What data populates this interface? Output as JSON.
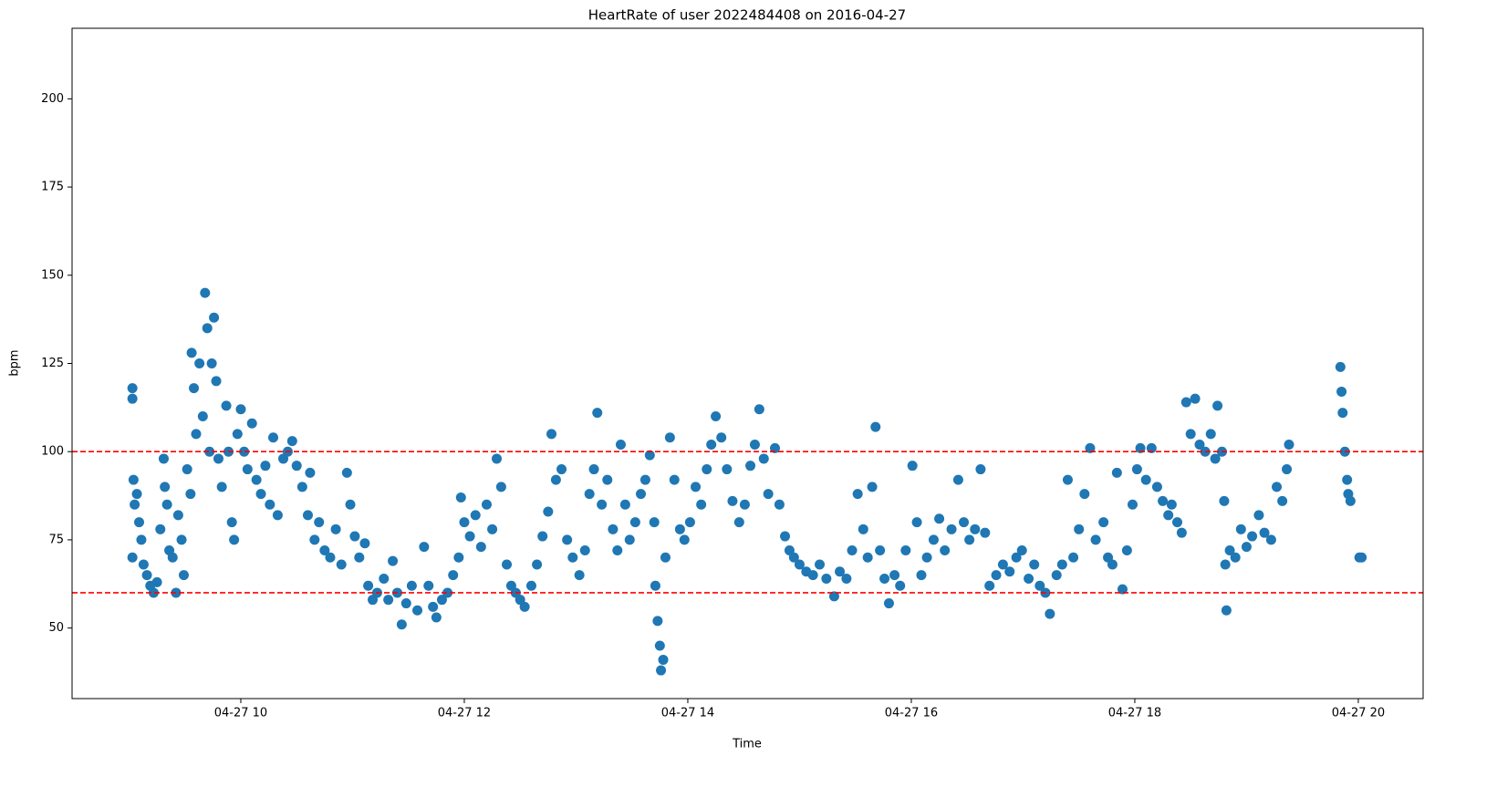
{
  "chart_data": {
    "type": "scatter",
    "title": "HeartRate of user 2022484408 on 2016-04-27",
    "x_label": "Time",
    "y_label": "bpm",
    "color": "#1f77b4",
    "grid": false,
    "xlim": [
      8.49,
      20.58
    ],
    "ylim": [
      30,
      220
    ],
    "xticks": [
      {
        "value": 10,
        "label": "04-27 10"
      },
      {
        "value": 12,
        "label": "04-27 12"
      },
      {
        "value": 14,
        "label": "04-27 14"
      },
      {
        "value": 16,
        "label": "04-27 16"
      },
      {
        "value": 18,
        "label": "04-27 18"
      },
      {
        "value": 20,
        "label": "04-27 20"
      }
    ],
    "yticks": [
      50,
      75,
      100,
      125,
      150,
      175,
      200
    ],
    "hlines": [
      {
        "value": 100,
        "color": "#ff0000",
        "style": "dashed"
      },
      {
        "value": 60,
        "color": "#ff0000",
        "style": "dashed"
      }
    ],
    "x": [
      9.03,
      9.03,
      9.04,
      9.05,
      9.03,
      9.07,
      9.09,
      9.11,
      9.13,
      9.16,
      9.19,
      9.22,
      9.25,
      9.28,
      9.31,
      9.32,
      9.34,
      9.36,
      9.39,
      9.42,
      9.44,
      9.47,
      9.49,
      9.52,
      9.55,
      9.56,
      9.58,
      9.6,
      9.63,
      9.66,
      9.68,
      9.7,
      9.72,
      9.74,
      9.76,
      9.78,
      9.8,
      9.83,
      9.87,
      9.89,
      9.92,
      9.94,
      9.97,
      10.0,
      10.03,
      10.06,
      10.1,
      10.14,
      10.18,
      10.22,
      10.26,
      10.29,
      10.33,
      10.38,
      10.42,
      10.46,
      10.5,
      10.55,
      10.6,
      10.62,
      10.66,
      10.7,
      10.75,
      10.8,
      10.85,
      10.9,
      10.95,
      10.98,
      11.02,
      11.06,
      11.11,
      11.14,
      11.18,
      11.22,
      11.28,
      11.32,
      11.36,
      11.4,
      11.44,
      11.48,
      11.53,
      11.58,
      11.64,
      11.68,
      11.72,
      11.75,
      11.8,
      11.85,
      11.9,
      11.95,
      11.97,
      12.0,
      12.05,
      12.1,
      12.15,
      12.2,
      12.25,
      12.29,
      12.33,
      12.38,
      12.42,
      12.46,
      12.5,
      12.54,
      12.6,
      12.65,
      12.7,
      12.75,
      12.78,
      12.82,
      12.87,
      12.92,
      12.97,
      13.03,
      13.08,
      13.12,
      13.16,
      13.19,
      13.23,
      13.28,
      13.33,
      13.37,
      13.4,
      13.44,
      13.48,
      13.53,
      13.58,
      13.62,
      13.66,
      13.7,
      13.71,
      13.73,
      13.75,
      13.76,
      13.78,
      13.8,
      13.84,
      13.88,
      13.93,
      13.97,
      14.02,
      14.07,
      14.12,
      14.17,
      14.21,
      14.25,
      14.3,
      14.35,
      14.4,
      14.46,
      14.51,
      14.56,
      14.6,
      14.64,
      14.68,
      14.72,
      14.78,
      14.82,
      14.87,
      14.91,
      14.95,
      15.0,
      15.06,
      15.12,
      15.18,
      15.24,
      15.31,
      15.36,
      15.42,
      15.47,
      15.52,
      15.57,
      15.61,
      15.65,
      15.68,
      15.72,
      15.76,
      15.8,
      15.85,
      15.9,
      15.95,
      16.01,
      16.05,
      16.09,
      16.14,
      16.2,
      16.25,
      16.3,
      16.36,
      16.42,
      16.47,
      16.52,
      16.57,
      16.62,
      16.66,
      16.7,
      16.76,
      16.82,
      16.88,
      16.94,
      16.99,
      17.05,
      17.1,
      17.15,
      17.2,
      17.24,
      17.3,
      17.35,
      17.4,
      17.45,
      17.5,
      17.55,
      17.6,
      17.65,
      17.72,
      17.76,
      17.8,
      17.84,
      17.89,
      17.93,
      17.98,
      18.02,
      18.05,
      18.1,
      18.15,
      18.2,
      18.25,
      18.3,
      18.33,
      18.38,
      18.42,
      18.46,
      18.5,
      18.54,
      18.58,
      18.63,
      18.68,
      18.72,
      18.74,
      18.78,
      18.8,
      18.81,
      18.82,
      18.85,
      18.9,
      18.95,
      19.0,
      19.05,
      19.11,
      19.16,
      19.22,
      19.27,
      19.32,
      19.36,
      19.38,
      19.84,
      19.85,
      19.86,
      19.88,
      19.9,
      19.91,
      19.93,
      20.01,
      20.03
    ],
    "values": [
      118,
      115,
      92,
      85,
      70,
      88,
      80,
      75,
      68,
      65,
      62,
      60,
      63,
      78,
      98,
      90,
      85,
      72,
      70,
      60,
      82,
      75,
      65,
      95,
      88,
      128,
      118,
      105,
      125,
      110,
      145,
      135,
      100,
      125,
      138,
      120,
      98,
      90,
      113,
      100,
      80,
      75,
      105,
      112,
      100,
      95,
      108,
      92,
      88,
      96,
      85,
      104,
      82,
      98,
      100,
      103,
      96,
      90,
      82,
      94,
      75,
      80,
      72,
      70,
      78,
      68,
      94,
      85,
      76,
      70,
      74,
      62,
      58,
      60,
      64,
      58,
      69,
      60,
      51,
      57,
      62,
      55,
      73,
      62,
      56,
      53,
      58,
      60,
      65,
      70,
      87,
      80,
      76,
      82,
      73,
      85,
      78,
      98,
      90,
      68,
      62,
      60,
      58,
      56,
      62,
      68,
      76,
      83,
      105,
      92,
      95,
      75,
      70,
      65,
      72,
      88,
      95,
      111,
      85,
      92,
      78,
      72,
      102,
      85,
      75,
      80,
      88,
      92,
      99,
      80,
      62,
      52,
      45,
      38,
      41,
      70,
      104,
      92,
      78,
      75,
      80,
      90,
      85,
      95,
      102,
      110,
      104,
      95,
      86,
      80,
      85,
      96,
      102,
      112,
      98,
      88,
      101,
      85,
      76,
      72,
      70,
      68,
      66,
      65,
      68,
      64,
      59,
      66,
      64,
      72,
      88,
      78,
      70,
      90,
      107,
      72,
      64,
      57,
      65,
      62,
      72,
      96,
      80,
      65,
      70,
      75,
      81,
      72,
      78,
      92,
      80,
      75,
      78,
      95,
      77,
      62,
      65,
      68,
      66,
      70,
      72,
      64,
      68,
      62,
      60,
      54,
      65,
      68,
      92,
      70,
      78,
      88,
      101,
      75,
      80,
      70,
      68,
      94,
      61,
      72,
      85,
      95,
      101,
      92,
      101,
      90,
      86,
      82,
      85,
      80,
      77,
      114,
      105,
      115,
      102,
      100,
      105,
      98,
      113,
      100,
      86,
      68,
      55,
      72,
      70,
      78,
      73,
      76,
      82,
      77,
      75,
      90,
      86,
      95,
      102,
      124,
      117,
      111,
      100,
      92,
      88,
      86,
      70,
      70
    ]
  }
}
